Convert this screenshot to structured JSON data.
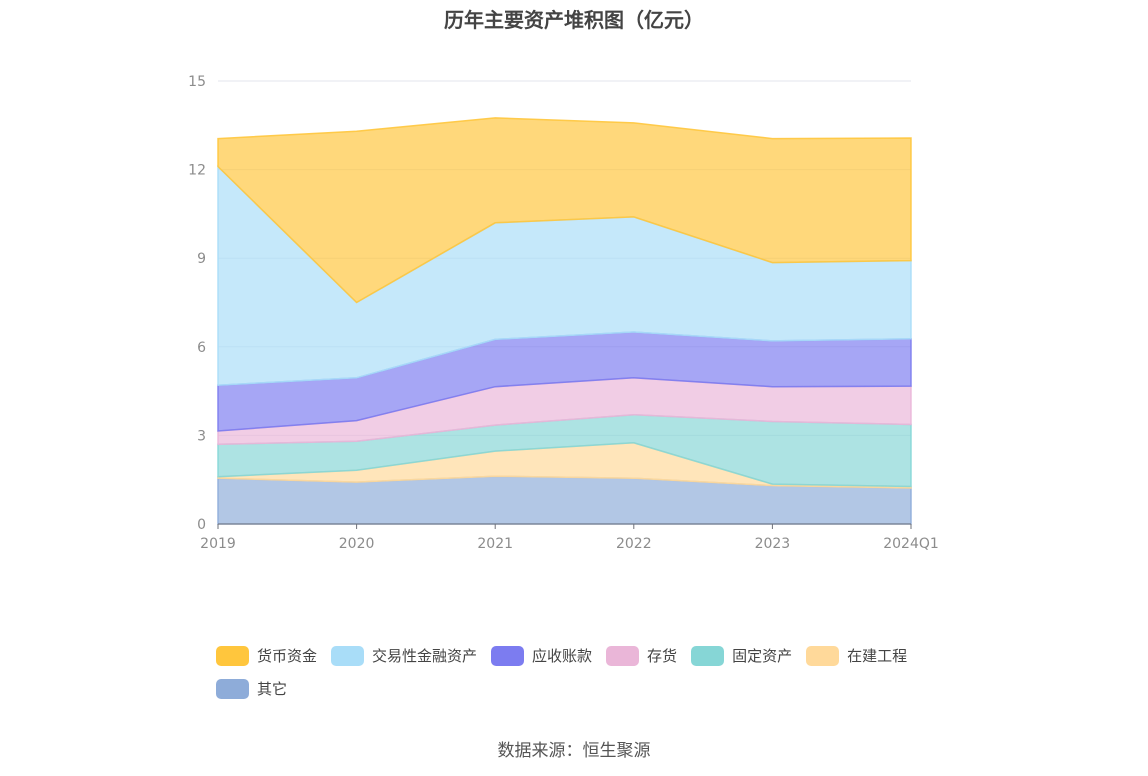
{
  "title": "历年主要资产堆积图（亿元）",
  "source": "数据来源：恒生聚源",
  "chart_data": {
    "type": "area",
    "stacked": true,
    "title": "历年主要资产堆积图（亿元）",
    "x": [
      "2019",
      "2020",
      "2021",
      "2022",
      "2023",
      "2024Q1"
    ],
    "ylim": [
      0,
      15
    ],
    "yticks": [
      0,
      3,
      6,
      9,
      12,
      15
    ],
    "grid": true,
    "legend_position": "bottom",
    "series": [
      {
        "name": "其它",
        "color": "#8EACD9",
        "values": [
          1.55,
          1.42,
          1.62,
          1.55,
          1.3,
          1.22
        ]
      },
      {
        "name": "在建工程",
        "color": "#FFD99A",
        "values": [
          0.05,
          0.4,
          0.85,
          1.2,
          0.05,
          0.05
        ]
      },
      {
        "name": "固定资产",
        "color": "#86D6D6",
        "values": [
          1.1,
          0.98,
          0.88,
          0.95,
          2.12,
          2.1
        ]
      },
      {
        "name": "存货",
        "color": "#EAB6D8",
        "values": [
          0.45,
          0.7,
          1.3,
          1.25,
          1.18,
          1.3
        ]
      },
      {
        "name": "应收账款",
        "color": "#7C7CF0",
        "values": [
          1.55,
          1.45,
          1.6,
          1.55,
          1.55,
          1.6
        ]
      },
      {
        "name": "交易性金融资产",
        "color": "#A9DDF8",
        "values": [
          7.4,
          2.55,
          3.95,
          3.9,
          2.65,
          2.65
        ]
      },
      {
        "name": "货币资金",
        "color": "#FFC63D",
        "values": [
          0.95,
          5.8,
          3.55,
          3.18,
          4.2,
          4.15
        ]
      }
    ]
  },
  "legend_order": [
    "货币资金",
    "交易性金融资产",
    "应收账款",
    "存货",
    "固定资产",
    "在建工程",
    "其它"
  ]
}
